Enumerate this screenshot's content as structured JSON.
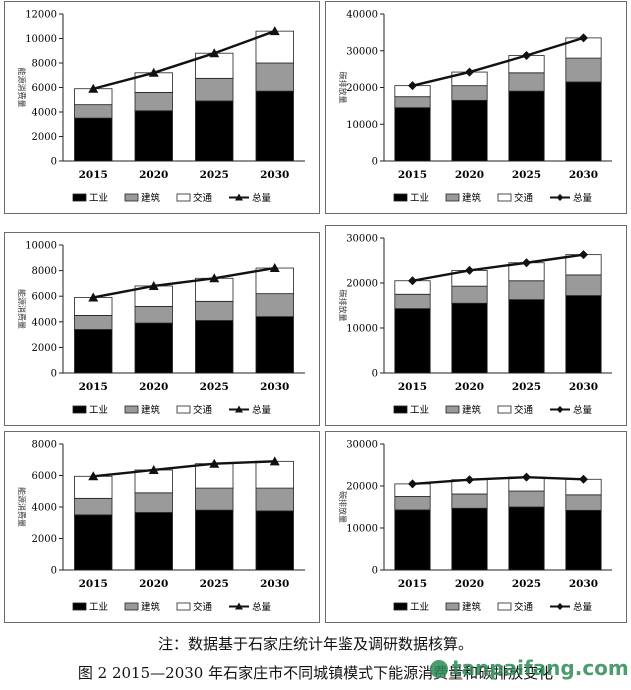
{
  "chart_data": [
    {
      "type": "bar",
      "categories": [
        "2015",
        "2020",
        "2025",
        "2030"
      ],
      "ylim": [
        0,
        12000
      ],
      "yticks": [
        0,
        2000,
        4000,
        6000,
        8000,
        10000,
        12000
      ],
      "ylabel": "能源消费量",
      "series": [
        {
          "name": "工业",
          "values": [
            3500,
            4100,
            4900,
            5700
          ],
          "color": "#000000"
        },
        {
          "name": "建筑",
          "values": [
            1100,
            1500,
            1850,
            2300
          ],
          "color": "#9a9a9a"
        },
        {
          "name": "交通",
          "values": [
            1300,
            1600,
            2050,
            2600
          ],
          "color": "#ffffff"
        }
      ],
      "total": {
        "name": "总量",
        "values": [
          5900,
          7200,
          8800,
          10600
        ],
        "marker": "triangle"
      }
    },
    {
      "type": "bar",
      "categories": [
        "2015",
        "2020",
        "2025",
        "2030"
      ],
      "ylim": [
        0,
        40000
      ],
      "yticks": [
        0,
        10000,
        20000,
        30000,
        40000
      ],
      "ylabel": "碳排放量",
      "series": [
        {
          "name": "工业",
          "values": [
            14500,
            16500,
            19000,
            21500
          ],
          "color": "#000000"
        },
        {
          "name": "建筑",
          "values": [
            3000,
            4000,
            5000,
            6500
          ],
          "color": "#9a9a9a"
        },
        {
          "name": "交通",
          "values": [
            3000,
            3700,
            4700,
            5500
          ],
          "color": "#ffffff"
        }
      ],
      "total": {
        "name": "总量",
        "values": [
          20500,
          24200,
          28700,
          33500
        ],
        "marker": "diamond"
      }
    },
    {
      "type": "bar",
      "categories": [
        "2015",
        "2020",
        "2025",
        "2030"
      ],
      "ylim": [
        0,
        10000
      ],
      "yticks": [
        0,
        2000,
        4000,
        6000,
        8000,
        10000
      ],
      "ylabel": "能源消费量",
      "series": [
        {
          "name": "工业",
          "values": [
            3400,
            3900,
            4100,
            4400
          ],
          "color": "#000000"
        },
        {
          "name": "建筑",
          "values": [
            1100,
            1300,
            1500,
            1800
          ],
          "color": "#9a9a9a"
        },
        {
          "name": "交通",
          "values": [
            1400,
            1600,
            1800,
            2000
          ],
          "color": "#ffffff"
        }
      ],
      "total": {
        "name": "总量",
        "values": [
          5900,
          6800,
          7400,
          8200
        ],
        "marker": "triangle"
      }
    },
    {
      "type": "bar",
      "categories": [
        "2015",
        "2020",
        "2025",
        "2030"
      ],
      "ylim": [
        0,
        30000
      ],
      "yticks": [
        0,
        10000,
        20000,
        30000
      ],
      "ylabel": "碳排放量",
      "series": [
        {
          "name": "工业",
          "values": [
            14300,
            15500,
            16300,
            17200
          ],
          "color": "#000000"
        },
        {
          "name": "建筑",
          "values": [
            3200,
            3800,
            4200,
            4600
          ],
          "color": "#9a9a9a"
        },
        {
          "name": "交通",
          "values": [
            3000,
            3500,
            4000,
            4500
          ],
          "color": "#ffffff"
        }
      ],
      "total": {
        "name": "总量",
        "values": [
          20500,
          22800,
          24500,
          26300
        ],
        "marker": "diamond"
      }
    },
    {
      "type": "bar",
      "categories": [
        "2015",
        "2020",
        "2025",
        "2030"
      ],
      "ylim": [
        0,
        8000
      ],
      "yticks": [
        0,
        2000,
        4000,
        6000,
        8000
      ],
      "ylabel": "能源消费量",
      "series": [
        {
          "name": "工业",
          "values": [
            3500,
            3650,
            3800,
            3750
          ],
          "color": "#000000"
        },
        {
          "name": "建筑",
          "values": [
            1050,
            1250,
            1400,
            1450
          ],
          "color": "#9a9a9a"
        },
        {
          "name": "交通",
          "values": [
            1400,
            1450,
            1550,
            1700
          ],
          "color": "#ffffff"
        }
      ],
      "total": {
        "name": "总量",
        "values": [
          5950,
          6350,
          6750,
          6900
        ],
        "marker": "triangle"
      }
    },
    {
      "type": "bar",
      "categories": [
        "2015",
        "2020",
        "2025",
        "2030"
      ],
      "ylim": [
        0,
        30000
      ],
      "yticks": [
        0,
        10000,
        20000,
        30000
      ],
      "ylabel": "碳排放量",
      "series": [
        {
          "name": "工业",
          "values": [
            14300,
            14700,
            15000,
            14200
          ],
          "color": "#000000"
        },
        {
          "name": "建筑",
          "values": [
            3200,
            3400,
            3800,
            3700
          ],
          "color": "#9a9a9a"
        },
        {
          "name": "交通",
          "values": [
            3000,
            3400,
            3300,
            3700
          ],
          "color": "#ffffff"
        }
      ],
      "total": {
        "name": "总量",
        "values": [
          20500,
          21500,
          22100,
          21600
        ],
        "marker": "diamond"
      }
    }
  ],
  "note": "注：数据基于石家庄统计年鉴及调研数据核算。",
  "caption": "图 2 2015—2030 年石家庄市不同城镇模式下能源消费量和碳排放变化",
  "watermark": "tanpaifang.com"
}
